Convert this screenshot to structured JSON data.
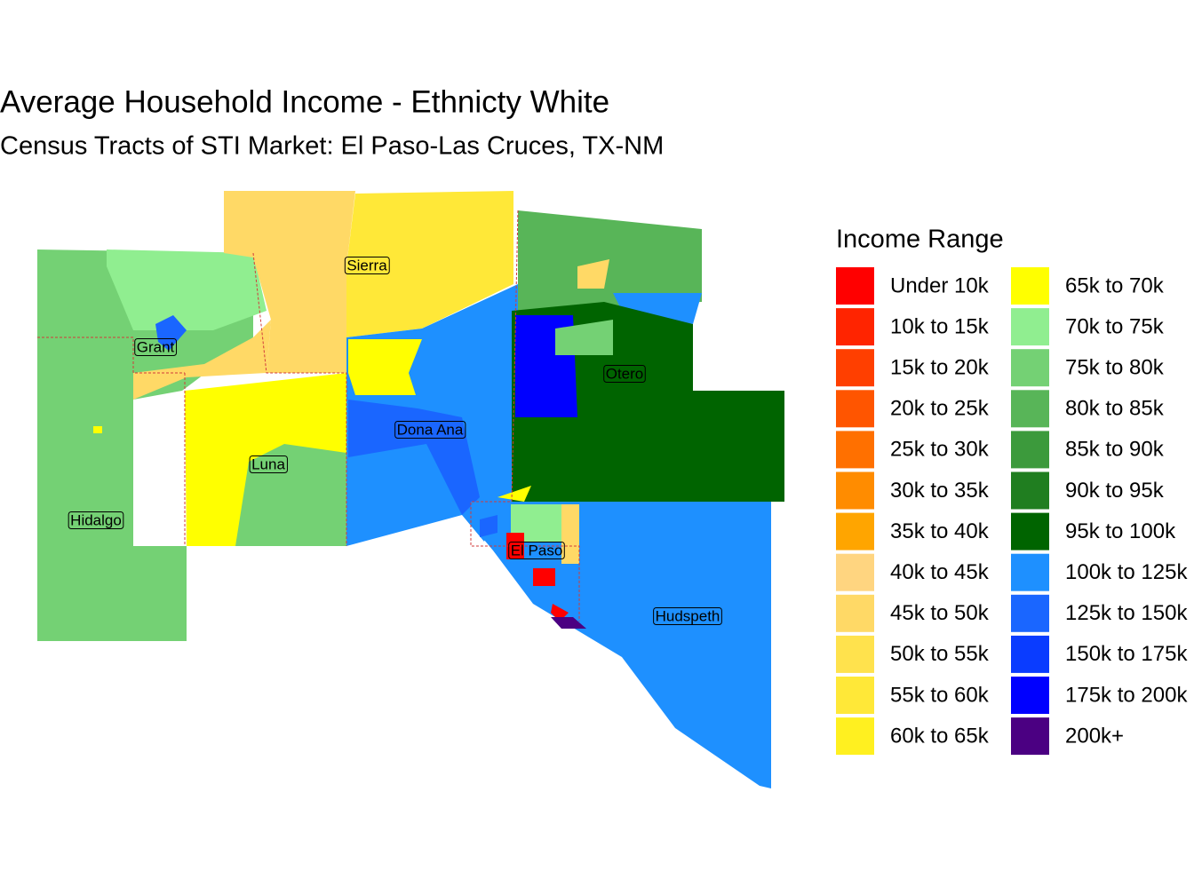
{
  "title": "Average Household Income - Ethnicty White",
  "subtitle": "Census Tracts of STI Market: El Paso-Las Cruces, TX-NM",
  "legend": {
    "title": "Income Range",
    "items": [
      {
        "label": "Under 10k",
        "color": "#FF0000"
      },
      {
        "label": "10k to 15k",
        "color": "#FF2400"
      },
      {
        "label": "15k to 20k",
        "color": "#FF3F00"
      },
      {
        "label": "20k to 25k",
        "color": "#FF5500"
      },
      {
        "label": "25k to 30k",
        "color": "#FF7000"
      },
      {
        "label": "30k to 35k",
        "color": "#FF8C00"
      },
      {
        "label": "35k to 40k",
        "color": "#FFA500"
      },
      {
        "label": "40k to 45k",
        "color": "#FFD580"
      },
      {
        "label": "45k to 50k",
        "color": "#FFD966"
      },
      {
        "label": "50k to 55k",
        "color": "#FFE24D"
      },
      {
        "label": "55k to 60k",
        "color": "#FFE838"
      },
      {
        "label": "60k to 65k",
        "color": "#FFF020"
      },
      {
        "label": "65k to 70k",
        "color": "#FFFF00"
      },
      {
        "label": "70k to 75k",
        "color": "#90EE90"
      },
      {
        "label": "75k to 80k",
        "color": "#74D174"
      },
      {
        "label": "80k to 85k",
        "color": "#58B558"
      },
      {
        "label": "85k to 90k",
        "color": "#3C9A3C"
      },
      {
        "label": "90k to 95k",
        "color": "#207E20"
      },
      {
        "label": "95k to 100k",
        "color": "#006400"
      },
      {
        "label": "100k to 125k",
        "color": "#1E90FF"
      },
      {
        "label": "125k to 150k",
        "color": "#1A66FF"
      },
      {
        "label": "150k to 175k",
        "color": "#0A3CFF"
      },
      {
        "label": "175k to 200k",
        "color": "#0000FF"
      },
      {
        "label": "200k+",
        "color": "#4B0082"
      }
    ]
  },
  "counties": [
    {
      "name": "Sierra"
    },
    {
      "name": "Grant"
    },
    {
      "name": "Otero"
    },
    {
      "name": "Dona Ana"
    },
    {
      "name": "Luna"
    },
    {
      "name": "Hidalgo"
    },
    {
      "name": "El Paso"
    },
    {
      "name": "Hudspeth"
    }
  ]
}
